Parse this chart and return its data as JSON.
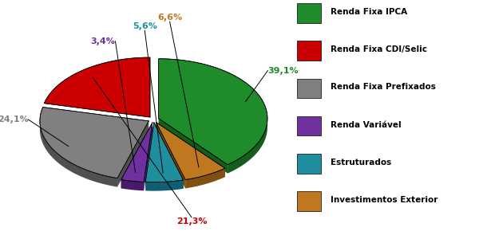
{
  "labels": [
    "Renda Fixa IPCA",
    "Renda Fixa CDI/Selic",
    "Renda Fixa Prefixados",
    "Renda Variável",
    "Estruturados",
    "Investimentos Exterior"
  ],
  "values": [
    39.1,
    21.3,
    24.1,
    3.4,
    5.6,
    6.6
  ],
  "colors": [
    "#1e8c2a",
    "#cc0000",
    "#808080",
    "#7030a0",
    "#1f8fa0",
    "#c07820"
  ],
  "dark_colors": [
    "#145e1c",
    "#8b0000",
    "#505050",
    "#4a1a6a",
    "#0f5f70",
    "#805010"
  ],
  "pct_labels": [
    "39,1%",
    "21,3%",
    "24,1%",
    "3,4%",
    "5,6%",
    "6,6%"
  ],
  "pct_colors": [
    "#1e8c2a",
    "#cc0000",
    "#808080",
    "#7030a0",
    "#1f8fa0",
    "#c07820"
  ],
  "legend_labels": [
    "Renda Fixa IPCA",
    "Renda Fixa CDI/Selic",
    "Renda Fixa Prefixados",
    "Renda Variável",
    "Estruturados",
    "Investimentos Exterior"
  ],
  "order": [
    0,
    5,
    4,
    3,
    2,
    1
  ],
  "startangle": 90,
  "depth": 0.08,
  "yscale": 0.55
}
